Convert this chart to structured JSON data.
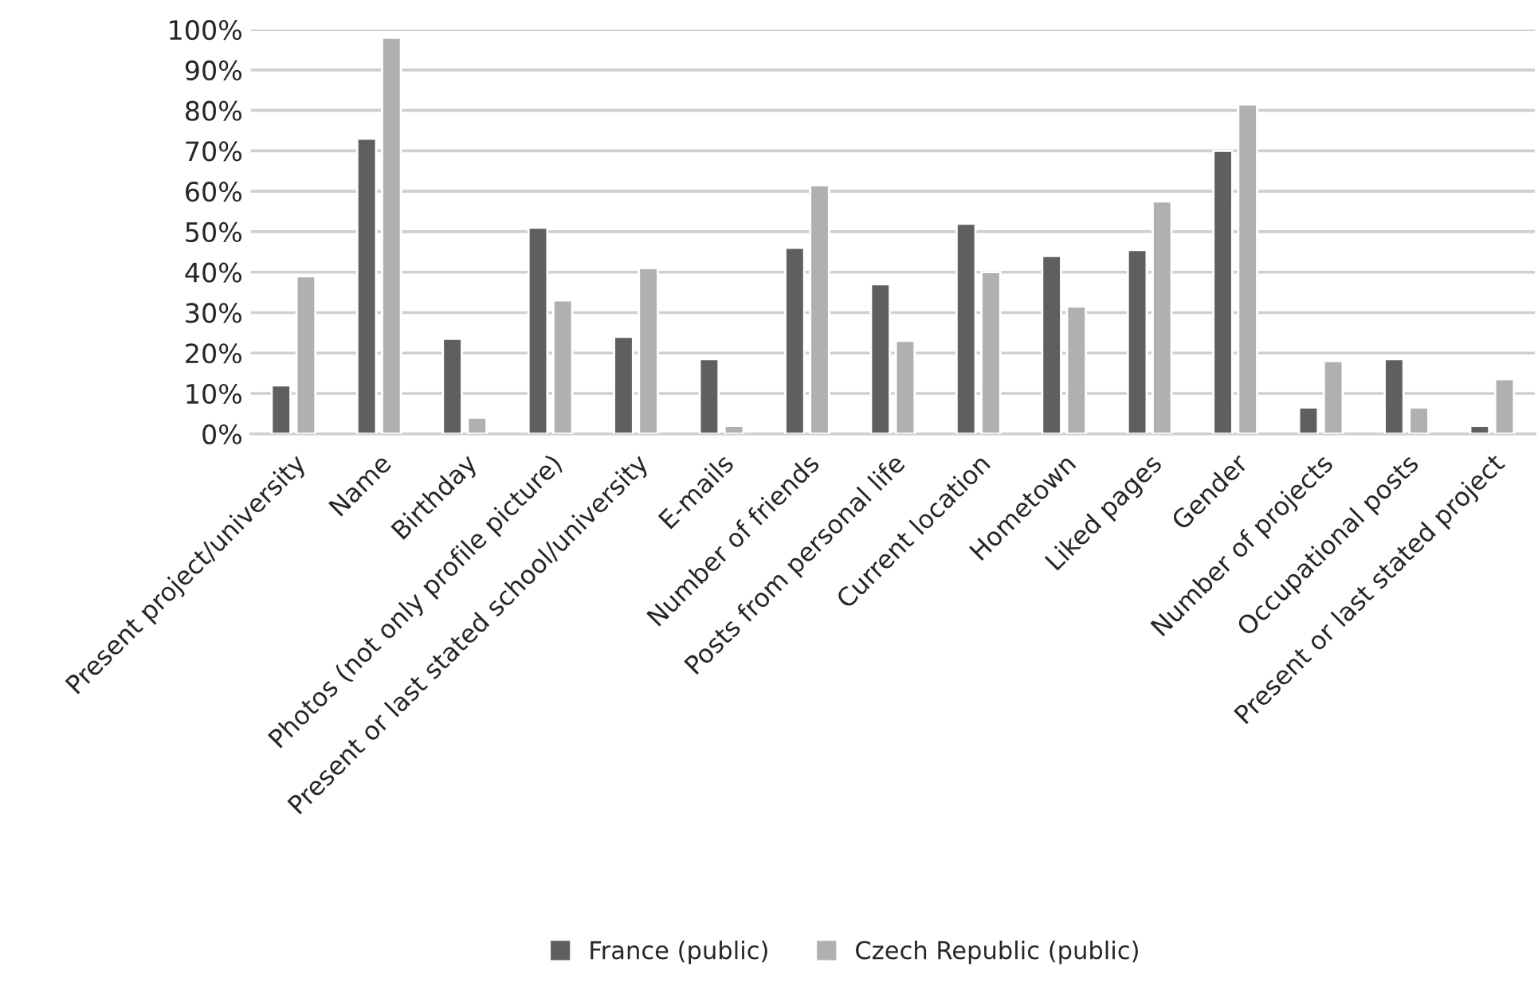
{
  "chart_data": {
    "type": "bar",
    "categories": [
      "Present project/university",
      "Name",
      "Birthday",
      "Photos (not only profile picture)",
      "Present or last stated school/university",
      "E-mails",
      "Number of friends",
      "Posts from personal life",
      "Current location",
      "Hometown",
      "Liked pages",
      "Gender",
      "Number of projects",
      "Occupational posts",
      "Present or last stated project"
    ],
    "series": [
      {
        "name": "France (public)",
        "color": "#5f5f5f",
        "values": [
          12,
          73,
          23.5,
          51,
          24,
          18.5,
          46,
          37,
          52,
          44,
          45.5,
          70,
          6.5,
          18.5,
          2
        ]
      },
      {
        "name": "Czech Republic (public)",
        "color": "#b0b0b0",
        "values": [
          39,
          98,
          4,
          33,
          41,
          2,
          61.5,
          23,
          40,
          31.5,
          57.5,
          81.5,
          18,
          6.5,
          13.5
        ]
      }
    ],
    "ylim": [
      0,
      100
    ],
    "yticks": [
      {
        "value": 0,
        "label": "0%"
      },
      {
        "value": 10,
        "label": "10%"
      },
      {
        "value": 20,
        "label": "20%"
      },
      {
        "value": 30,
        "label": "30%"
      },
      {
        "value": 40,
        "label": "40%"
      },
      {
        "value": 50,
        "label": "50%"
      },
      {
        "value": 60,
        "label": "60%"
      },
      {
        "value": 70,
        "label": "70%"
      },
      {
        "value": 80,
        "label": "80%"
      },
      {
        "value": 90,
        "label": "90%"
      },
      {
        "value": 100,
        "label": "100%"
      }
    ],
    "grid": "y",
    "legend": "bottom"
  }
}
